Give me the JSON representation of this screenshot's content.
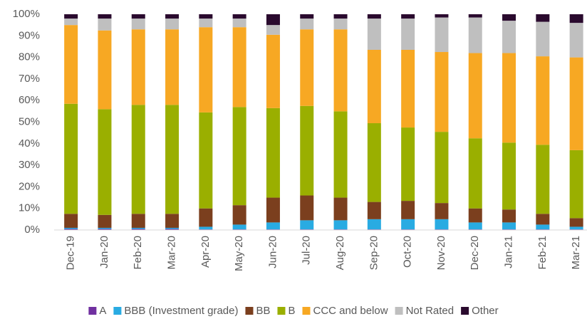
{
  "chart_data": {
    "type": "stacked_bar",
    "categories": [
      "Dec-19",
      "Jan-20",
      "Feb-20",
      "Mar-20",
      "Apr-20",
      "May-20",
      "Jun-20",
      "Jul-20",
      "Aug-20",
      "Sep-20",
      "Oct-20",
      "Nov-20",
      "Dec-20",
      "Jan-21",
      "Feb-21",
      "Mar-21"
    ],
    "series": [
      {
        "name": "A",
        "color": "#7030a0",
        "values": [
          0.5,
          0.5,
          0.5,
          0.5,
          0.3,
          0.3,
          0.3,
          0.3,
          0.3,
          0.3,
          0.3,
          0.3,
          0.3,
          0.3,
          0.3,
          0.3
        ]
      },
      {
        "name": "BBB (Investment grade)",
        "color": "#29abe2",
        "values": [
          0.5,
          0.5,
          0.5,
          0.5,
          1.2,
          2.2,
          3.2,
          4.2,
          4.2,
          4.7,
          4.7,
          4.7,
          3.2,
          3.2,
          2.2,
          1.2
        ]
      },
      {
        "name": "BB",
        "color": "#7b3f1e",
        "values": [
          6.5,
          6,
          6.5,
          6.5,
          8.5,
          9,
          11.5,
          11.5,
          10.5,
          8,
          8.5,
          7.5,
          6.5,
          6,
          5,
          4
        ]
      },
      {
        "name": "B",
        "color": "#9aaf00",
        "values": [
          51,
          49,
          50.5,
          50.5,
          44.5,
          45.5,
          41.5,
          41.5,
          40,
          36.5,
          34,
          33,
          32.5,
          31,
          32,
          31.5
        ]
      },
      {
        "name": "CCC and below",
        "color": "#f7a823",
        "values": [
          36.5,
          36.5,
          35,
          35,
          39.5,
          37,
          34,
          35.5,
          38,
          34,
          36,
          37,
          39.5,
          41.5,
          41,
          43
        ]
      },
      {
        "name": "Not Rated",
        "color": "#bfbfbf",
        "values": [
          3,
          5.5,
          5,
          5,
          4,
          4,
          4.5,
          5,
          5,
          14.5,
          14.5,
          16,
          16.5,
          15,
          16,
          16
        ]
      },
      {
        "name": "Other",
        "color": "#2a0a2e",
        "values": [
          2,
          2,
          2,
          2,
          2,
          2,
          5,
          2,
          2,
          2,
          2,
          1.5,
          1.5,
          3,
          3.5,
          4
        ]
      }
    ],
    "ylim": [
      0,
      100
    ],
    "yticks": [
      {
        "value": 0,
        "label": "0%"
      },
      {
        "value": 10,
        "label": "10%"
      },
      {
        "value": 20,
        "label": "20%"
      },
      {
        "value": 30,
        "label": "30%"
      },
      {
        "value": 40,
        "label": "40%"
      },
      {
        "value": 50,
        "label": "50%"
      },
      {
        "value": 60,
        "label": "60%"
      },
      {
        "value": 70,
        "label": "70%"
      },
      {
        "value": 80,
        "label": "80%"
      },
      {
        "value": 90,
        "label": "90%"
      },
      {
        "value": 100,
        "label": "100%"
      }
    ],
    "grid": false,
    "legend": "bottom"
  }
}
